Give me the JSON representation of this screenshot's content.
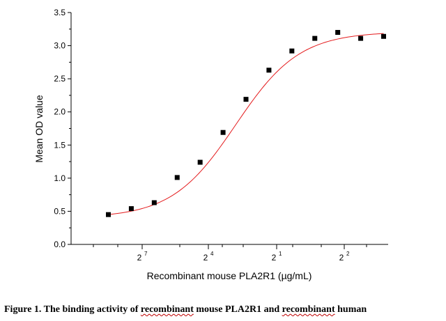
{
  "chart_data": {
    "type": "scatter",
    "ylabel": "Mean OD value",
    "xlabel": "Recombinant mouse PLA2R1 (µg/mL)",
    "ylim": [
      0,
      3.5
    ],
    "y_ticks": [
      "0.0",
      "0.5",
      "1.0",
      "1.5",
      "2.0",
      "2.5",
      "3.0",
      "3.5"
    ],
    "x_tick_labels": [
      {
        "base": "2",
        "exp": "7"
      },
      {
        "base": "2",
        "exp": "4"
      },
      {
        "base": "2",
        "exp": "1"
      },
      {
        "base": "2",
        "exp": "2"
      }
    ],
    "grid": false,
    "fit_curve_color": "#e41a1c",
    "marker_color": "#000000",
    "points": [
      0.45,
      0.54,
      0.63,
      1.01,
      1.24,
      1.69,
      2.19,
      2.63,
      2.92,
      3.11,
      3.2,
      3.11,
      3.14
    ],
    "fit_curve": {
      "bottom": 0.4,
      "top": 3.21,
      "hill_slope": 0.72
    }
  },
  "caption": {
    "parts": [
      {
        "text": "Figure 1. The binding activity of ",
        "squiggle": false
      },
      {
        "text": "recombinant",
        "squiggle": true
      },
      {
        "text": " mouse PLA2R1 and ",
        "squiggle": false
      },
      {
        "text": "recombinant",
        "squiggle": true
      },
      {
        "text": " human",
        "squiggle": false
      }
    ]
  }
}
